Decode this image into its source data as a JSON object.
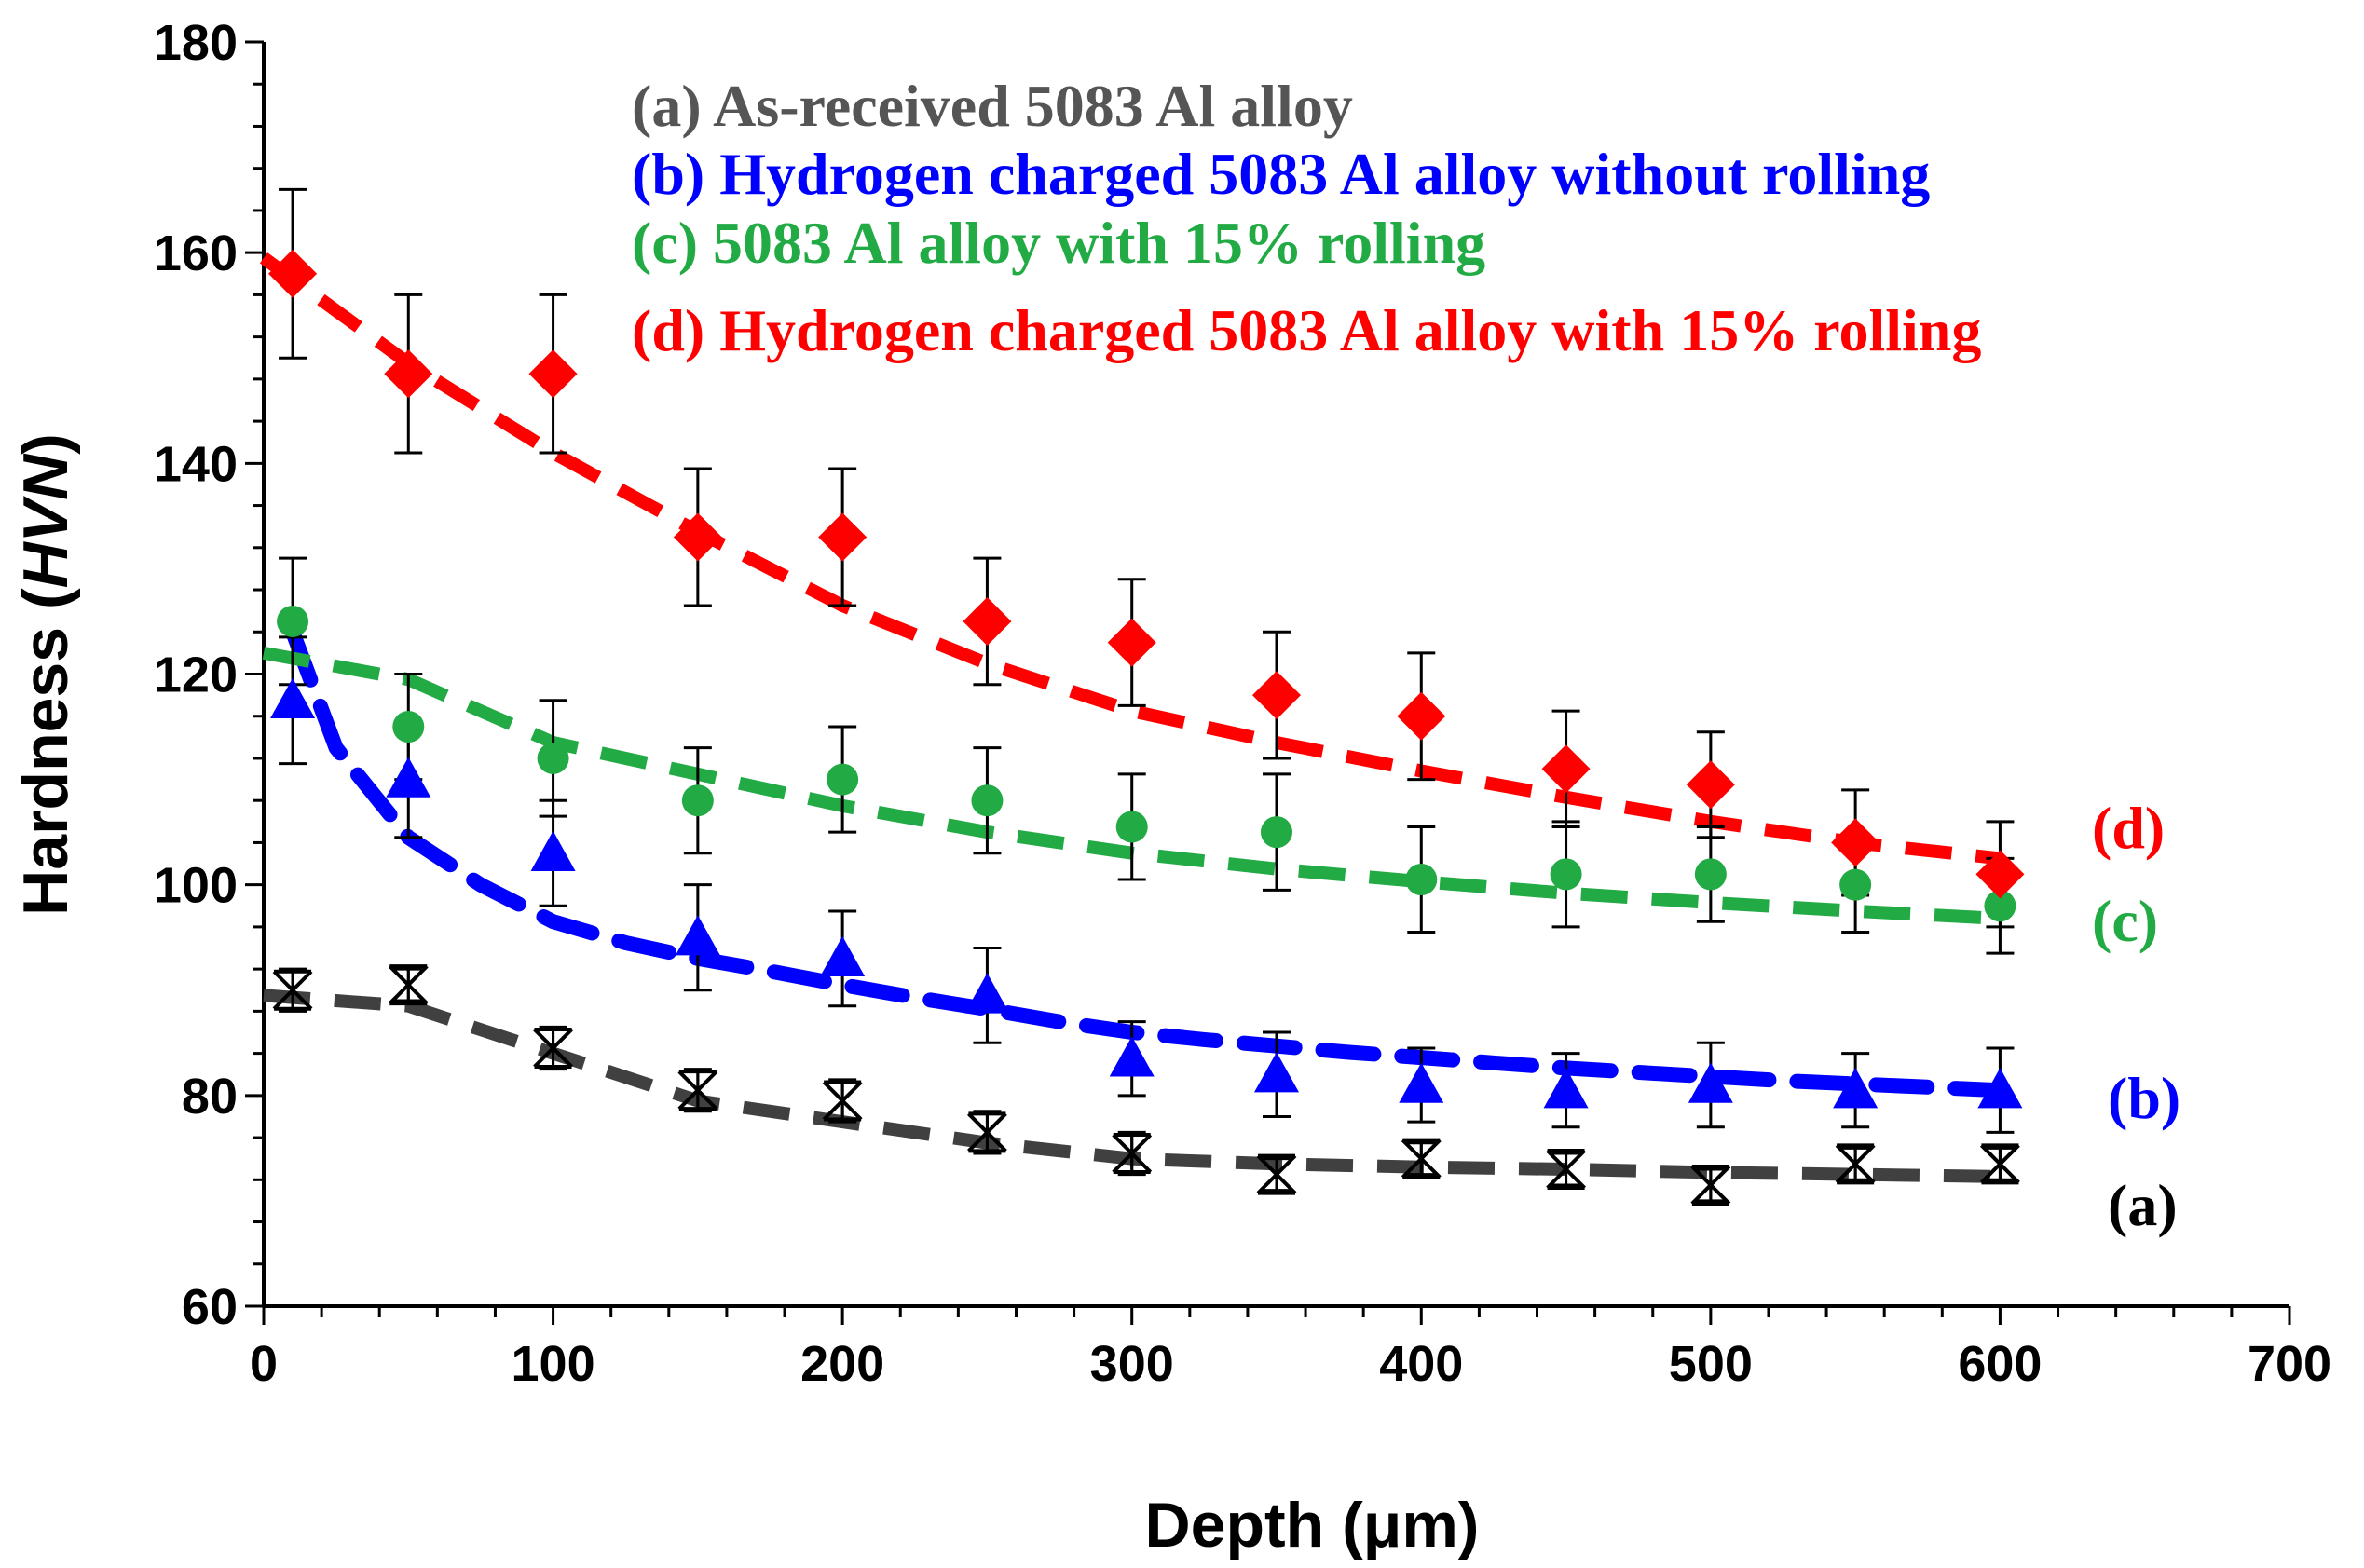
{
  "chart_data": {
    "type": "scatter",
    "title": "",
    "xlabel": "Depth (μm)",
    "ylabel_prefix": "Hardness (",
    "ylabel_italic": "HVN",
    "ylabel_suffix": ")",
    "xlim": [
      0,
      700
    ],
    "ylim": [
      60,
      180
    ],
    "xticks": [
      0,
      100,
      200,
      300,
      400,
      500,
      600,
      700
    ],
    "yticks": [
      60,
      80,
      100,
      120,
      140,
      160,
      180
    ],
    "grid": false,
    "legend_position": "top",
    "series": [
      {
        "id": "a",
        "name": "(a) As-received 5083 Al alloy",
        "end_label": "(a)",
        "color": "#404040",
        "end_label_color": "#000000",
        "marker": "star-x",
        "marker_color": "#000000",
        "x": [
          10,
          50,
          100,
          150,
          200,
          250,
          300,
          350,
          400,
          450,
          500,
          550,
          600
        ],
        "y": [
          90,
          90.5,
          84.5,
          80.5,
          79.5,
          76.5,
          74.5,
          72.5,
          74,
          73,
          71.5,
          73.5,
          73.5
        ],
        "err": [
          2,
          1.5,
          2,
          2,
          2,
          2,
          2,
          1.5,
          1.5,
          1.5,
          1.5,
          1.5,
          1.5
        ],
        "fit_type": "dashed",
        "fit_x": [
          0,
          50,
          100,
          150,
          200,
          250,
          300,
          350,
          400,
          450,
          500,
          550,
          600
        ],
        "fit_y": [
          89.5,
          88.5,
          84,
          79.5,
          77.5,
          75.5,
          74,
          73.5,
          73.2,
          73,
          72.7,
          72.5,
          72.3
        ]
      },
      {
        "id": "b",
        "name": "(b) Hydrogen charged 5083 Al alloy without rolling",
        "end_label": "(b)",
        "color": "#0000ff",
        "end_label_color": "#0000ff",
        "marker": "triangle",
        "marker_color": "#0000ff",
        "x": [
          10,
          50,
          100,
          150,
          200,
          250,
          300,
          350,
          400,
          450,
          500,
          550,
          600
        ],
        "y": [
          117.5,
          110,
          103,
          95,
          93,
          89.5,
          83.5,
          82,
          81,
          80.5,
          81,
          80.5,
          80.5
        ],
        "err": [
          6,
          5.5,
          5,
          5,
          4.5,
          4.5,
          3.5,
          4,
          3.5,
          3.5,
          4,
          3.5,
          4
        ],
        "fit_type": "dotted",
        "fit_x": [
          10,
          25,
          50,
          75,
          100,
          125,
          150,
          175,
          200,
          225,
          250,
          275,
          300,
          325,
          350,
          375,
          400,
          425,
          450,
          475,
          500,
          525,
          550,
          575,
          600
        ],
        "fit_y": [
          124,
          113,
          104.5,
          100,
          96.5,
          94.5,
          93,
          91.8,
          90.5,
          89.3,
          88.2,
          87,
          86,
          85.3,
          84.7,
          84.1,
          83.6,
          83.1,
          82.6,
          82.2,
          81.8,
          81.4,
          81.1,
          80.8,
          80.5
        ]
      },
      {
        "id": "c",
        "name": "(c) 5083 Al alloy with 15% rolling",
        "end_label": "(c)",
        "color": "#22aa44",
        "end_label_color": "#22aa44",
        "marker": "circle",
        "marker_color": "#22aa44",
        "x": [
          10,
          50,
          100,
          150,
          200,
          250,
          300,
          350,
          400,
          450,
          500,
          550,
          600
        ],
        "y": [
          125,
          115,
          112,
          108,
          110,
          108,
          105.5,
          105,
          100.5,
          101,
          101,
          100,
          98
        ],
        "err": [
          6,
          5,
          5.5,
          5,
          5,
          5,
          5,
          5.5,
          5,
          5,
          4.5,
          4.5,
          4.5
        ],
        "fit_type": "dashed",
        "fit_x": [
          0,
          50,
          100,
          150,
          200,
          250,
          300,
          350,
          400,
          450,
          500,
          550,
          600
        ],
        "fit_y": [
          122,
          119.5,
          113.5,
          110.5,
          107.5,
          105,
          103,
          101.5,
          100.3,
          99.2,
          98.3,
          97.5,
          96.8
        ]
      },
      {
        "id": "d",
        "name": "(d) Hydrogen charged 5083 Al alloy with 15% rolling",
        "end_label": "(d)",
        "color": "#ff0000",
        "end_label_color": "#ff0000",
        "marker": "diamond",
        "marker_color": "#ff0000",
        "x": [
          10,
          50,
          100,
          150,
          200,
          250,
          300,
          350,
          400,
          450,
          500,
          550,
          600
        ],
        "y": [
          158,
          148.5,
          148.5,
          133,
          133,
          125,
          123,
          118,
          116,
          111,
          109.5,
          104,
          101
        ],
        "err": [
          8,
          7.5,
          7.5,
          6.5,
          6.5,
          6,
          6,
          6,
          6,
          5.5,
          5,
          5,
          5
        ],
        "fit_type": "dashed",
        "fit_x": [
          0,
          50,
          100,
          150,
          200,
          250,
          300,
          350,
          400,
          450,
          500,
          550,
          600
        ],
        "fit_y": [
          159.5,
          149.5,
          141,
          133.5,
          126.5,
          121,
          116.5,
          113.5,
          110.8,
          108.3,
          106,
          104,
          102.5
        ]
      }
    ]
  }
}
